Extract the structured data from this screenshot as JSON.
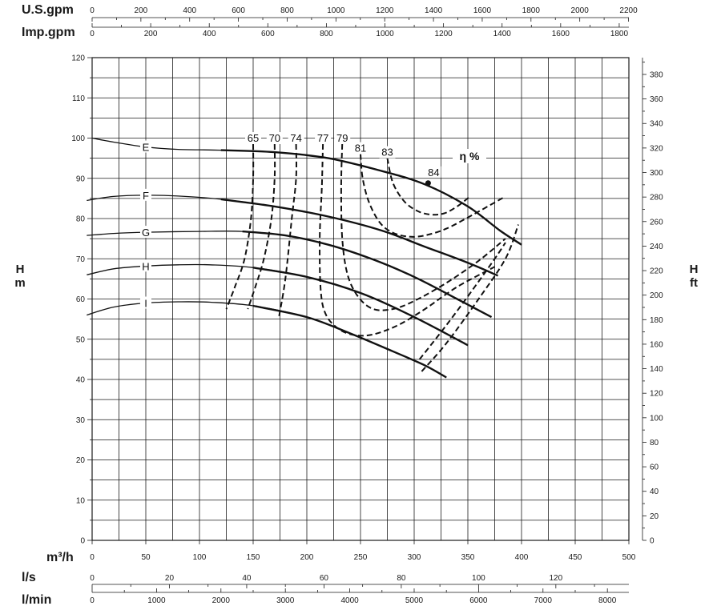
{
  "chart_data": {
    "type": "line",
    "xlabel": "m³/h",
    "xlim": [
      0,
      500
    ],
    "x_ticks": [
      "0",
      "50",
      "100",
      "150",
      "200",
      "250",
      "300",
      "350",
      "400",
      "450",
      "500"
    ],
    "ylabel_left": [
      "H",
      "m"
    ],
    "ylim": [
      0,
      120
    ],
    "y_ticks": [
      "0",
      "10",
      "20",
      "30",
      "40",
      "50",
      "60",
      "70",
      "80",
      "90",
      "100",
      "110",
      "120"
    ],
    "ylabel_right": [
      "H",
      "ft"
    ],
    "y_ticks_right": [
      "0",
      "20",
      "40",
      "60",
      "80",
      "100",
      "120",
      "140",
      "160",
      "180",
      "200",
      "220",
      "240",
      "260",
      "280",
      "300",
      "320",
      "340",
      "360",
      "380"
    ],
    "top_axes": [
      {
        "label": "U.S.gpm",
        "ticks": [
          "0",
          "200",
          "400",
          "600",
          "800",
          "1000",
          "1200",
          "1400",
          "1600",
          "1800",
          "2000",
          "2200"
        ],
        "per_unit": 4.403
      },
      {
        "label": "Imp.gpm",
        "ticks": [
          "0",
          "200",
          "400",
          "600",
          "800",
          "1000",
          "1200",
          "1400",
          "1600",
          "1800"
        ],
        "per_unit": 3.666
      }
    ],
    "bottom_axes": [
      {
        "label": "l/s",
        "ticks": [
          "0",
          "20",
          "40",
          "60",
          "80",
          "100",
          "120"
        ],
        "per_unit": 0.2778
      },
      {
        "label": "l/min",
        "ticks": [
          "0",
          "1000",
          "2000",
          "3000",
          "4000",
          "5000",
          "6000",
          "7000",
          "8000"
        ],
        "per_unit": 16.667
      }
    ],
    "grid": true,
    "series": [
      {
        "name": "E",
        "x": [
          0,
          20,
          50,
          80,
          120,
          170,
          220,
          270,
          310,
          350,
          380,
          400
        ],
        "y": [
          100,
          99,
          97.8,
          97.2,
          97,
          96.5,
          95,
          91.8,
          88.5,
          83,
          77,
          73.5
        ]
      },
      {
        "name": "F",
        "x": [
          -5,
          20,
          50,
          80,
          120,
          170,
          220,
          270,
          310,
          350,
          378
        ],
        "y": [
          84.5,
          85.5,
          85.8,
          85.6,
          84.8,
          83,
          80.5,
          77,
          73,
          69,
          65.8
        ]
      },
      {
        "name": "G",
        "x": [
          -5,
          20,
          50,
          100,
          140,
          180,
          220,
          260,
          300,
          340,
          372
        ],
        "y": [
          75.8,
          76.3,
          76.6,
          76.8,
          76.8,
          75.8,
          73.5,
          70,
          65.5,
          60,
          55.5
        ]
      },
      {
        "name": "H",
        "x": [
          -5,
          20,
          50,
          80,
          110,
          150,
          200,
          250,
          300,
          350
        ],
        "y": [
          66,
          67.5,
          68.2,
          68.5,
          68.5,
          67.8,
          65.5,
          61.5,
          55.5,
          48.5
        ]
      },
      {
        "name": "I",
        "x": [
          -5,
          20,
          50,
          80,
          110,
          150,
          200,
          240,
          280,
          310,
          330
        ],
        "y": [
          56,
          58,
          59,
          59.3,
          59.2,
          58.3,
          55.5,
          51.5,
          47,
          43.5,
          40.5
        ]
      }
    ],
    "efficiency_curves": [
      {
        "name": "65",
        "x": [
          150,
          150,
          148,
          142,
          133,
          125
        ],
        "y": [
          98.5,
          90,
          80,
          70,
          63,
          57.5
        ]
      },
      {
        "name": "70",
        "x": [
          170,
          170,
          167,
          160,
          152,
          145
        ],
        "y": [
          98.5,
          90,
          80,
          70,
          63,
          57.5
        ]
      },
      {
        "name": "74",
        "x": [
          190,
          190,
          186,
          180,
          174
        ],
        "y": [
          98.5,
          90,
          80,
          65,
          55.5
        ]
      },
      {
        "name": "77",
        "x": [
          215,
          214,
          212,
          213,
          218,
          230,
          245,
          262,
          285,
          310,
          340,
          375
        ],
        "y": [
          98.5,
          88,
          75,
          62,
          56,
          52.5,
          51,
          51.2,
          53.5,
          57.5,
          63,
          68
        ]
      },
      {
        "name": "79",
        "x": [
          233,
          232,
          233,
          238,
          248,
          262,
          280,
          300,
          330,
          360,
          385
        ],
        "y": [
          98.5,
          88,
          75,
          66,
          60.5,
          57.5,
          57.5,
          59.5,
          64,
          69.5,
          75
        ]
      },
      {
        "name": "81",
        "x": [
          250,
          252,
          258,
          268,
          280,
          295,
          310,
          330,
          355,
          385
        ],
        "y": [
          96,
          90,
          84,
          79,
          76.5,
          75.5,
          75.8,
          77.5,
          81,
          85.5
        ]
      },
      {
        "name": "83",
        "x": [
          275,
          280,
          290,
          302,
          315,
          328,
          340,
          352
        ],
        "y": [
          95,
          89,
          84.5,
          82,
          81,
          81.3,
          83,
          85.5
        ]
      }
    ],
    "bep_lines": [
      {
        "x": [
          307,
          330,
          360,
          385,
          397
        ],
        "y": [
          42,
          49,
          60,
          70,
          78.5
        ]
      },
      {
        "x": [
          305,
          330,
          355,
          375,
          385
        ],
        "y": [
          45,
          53.5,
          62.5,
          70,
          74
        ]
      }
    ],
    "annotations": [
      {
        "text": "84",
        "x": 313,
        "y": 88.8
      },
      {
        "text": "η %"
      }
    ]
  }
}
